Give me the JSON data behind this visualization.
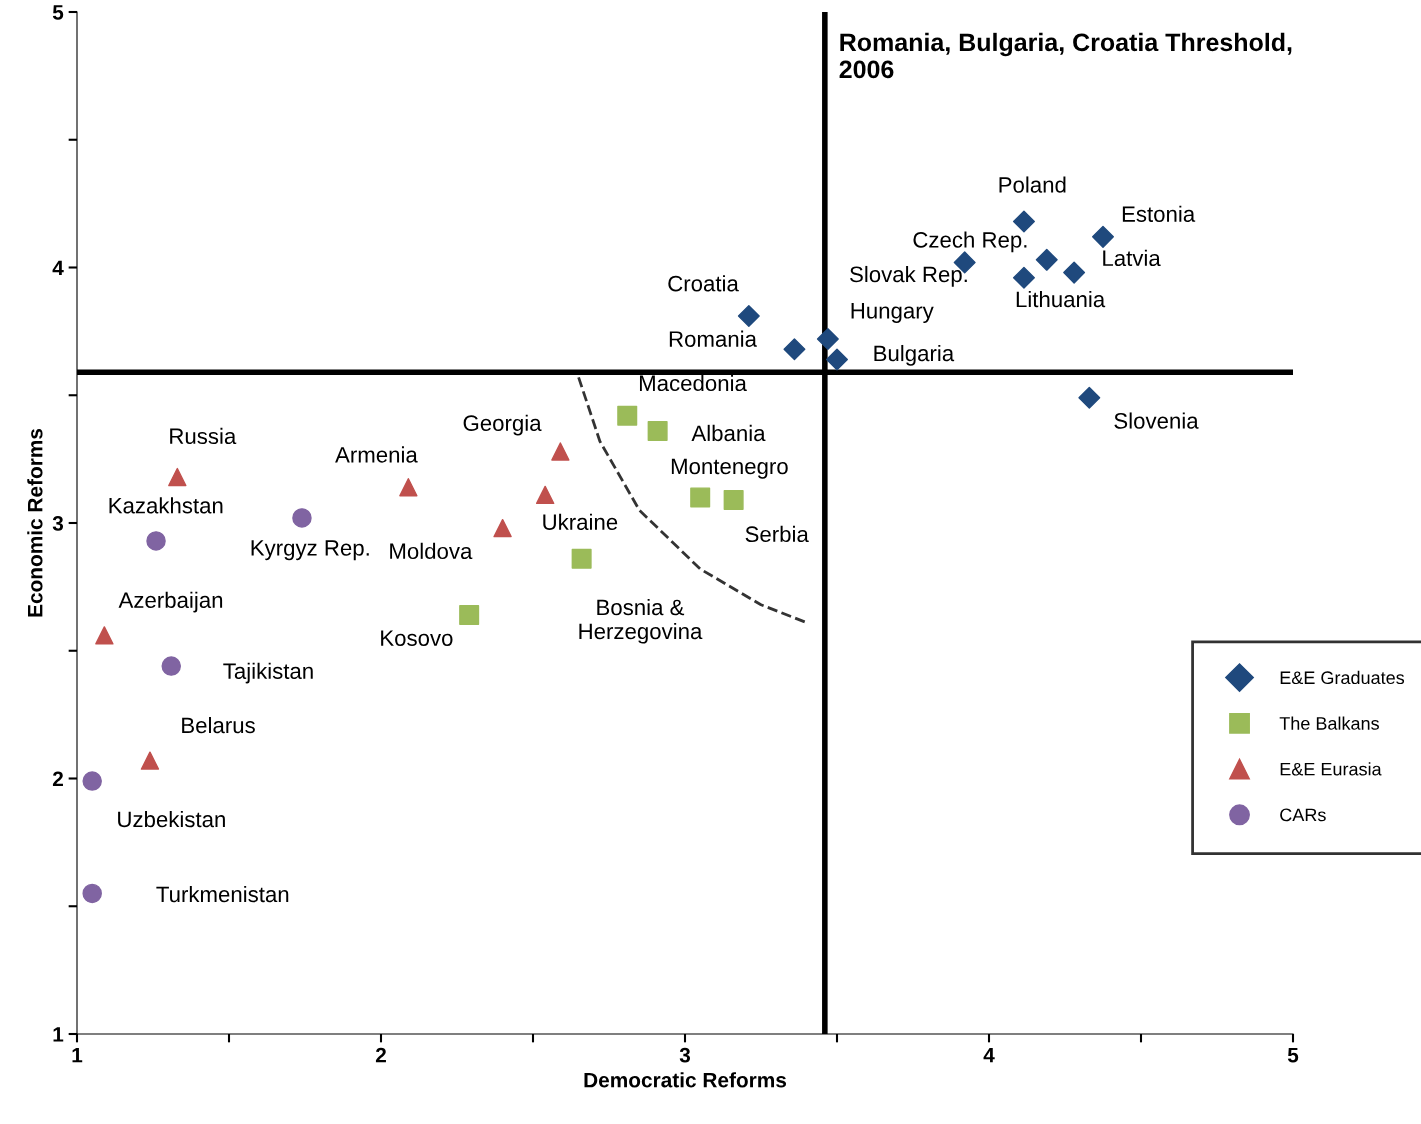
{
  "chart_data": {
    "type": "scatter",
    "xlabel": "Democratic Reforms",
    "ylabel": "Economic Reforms",
    "xlim": [
      1,
      5
    ],
    "ylim": [
      1,
      5
    ],
    "xticks": [
      1,
      {
        "value": 1.5,
        "label": null
      },
      2,
      {
        "value": 2.5,
        "label": null
      },
      3,
      {
        "value": 3.5,
        "label": null
      },
      4,
      {
        "value": 4.5,
        "label": null
      },
      5
    ],
    "yticks": [
      1,
      {
        "value": 1.5,
        "label": null
      },
      2,
      {
        "value": 2.5,
        "label": null
      },
      3,
      {
        "value": 3.5,
        "label": null
      },
      4,
      {
        "value": 4.5,
        "label": null
      },
      5
    ],
    "grid": false,
    "legend": "right",
    "series": [
      {
        "name": "E&E Graduates",
        "color": "#1f497d",
        "marker": "diamond",
        "x": [
          4.115,
          4.375,
          4.19,
          3.92,
          4.115,
          4.28,
          3.21,
          3.36,
          3.47,
          3.5,
          4.33
        ],
        "values": [
          4.18,
          4.12,
          4.03,
          4.02,
          3.96,
          3.98,
          3.81,
          3.68,
          3.72,
          3.64,
          3.49
        ]
      },
      {
        "name": "The Balkans",
        "color": "#9bbb59",
        "marker": "square",
        "x": [
          2.81,
          2.91,
          3.05,
          3.16,
          2.66,
          2.29
        ],
        "values": [
          3.42,
          3.36,
          3.1,
          3.09,
          2.86,
          2.64
        ]
      },
      {
        "name": "E&E Eurasia",
        "color": "#c0504d",
        "marker": "triangle",
        "x": [
          1.33,
          2.09,
          2.59,
          2.54,
          2.4,
          1.09,
          1.24
        ],
        "values": [
          3.18,
          3.14,
          3.28,
          3.11,
          2.98,
          2.56,
          2.07
        ]
      },
      {
        "name": "CARs",
        "color": "#8064a2",
        "marker": "circle",
        "x": [
          1.26,
          1.74,
          1.31,
          1.05,
          1.05
        ],
        "values": [
          2.93,
          3.02,
          2.44,
          1.99,
          1.55
        ]
      },
      {
        "type": "line",
        "color": "#333333",
        "line_style": "dashed",
        "marker": "none",
        "x": [
          2.65,
          2.72,
          2.85,
          3.05,
          3.25,
          3.4
        ],
        "values": [
          3.57,
          3.32,
          3.05,
          2.82,
          2.68,
          2.61
        ]
      }
    ],
    "ref_lines": [
      {
        "axis": "x",
        "value": 3.46,
        "label": "Romania, Bulgaria, Croatia Threshold,\n2006",
        "color": "#000000"
      },
      {
        "axis": "y",
        "value": 3.59,
        "color": "#000000"
      }
    ],
    "annotations": [
      {
        "text": "Poland",
        "x": 4.115,
        "y": 4.18
      },
      {
        "text": "Estonia",
        "x": 4.375,
        "y": 4.12
      },
      {
        "text": "Czech Rep.",
        "x": 4.19,
        "y": 4.03
      },
      {
        "text": "Slovak Rep.",
        "x": 3.92,
        "y": 4.02
      },
      {
        "text": "Lithuania",
        "x": 4.115,
        "y": 3.96
      },
      {
        "text": "Latvia",
        "x": 4.28,
        "y": 3.98
      },
      {
        "text": "Croatia",
        "x": 3.21,
        "y": 3.81
      },
      {
        "text": "Romania",
        "x": 3.36,
        "y": 3.68
      },
      {
        "text": "Hungary",
        "x": 3.47,
        "y": 3.72
      },
      {
        "text": "Bulgaria",
        "x": 3.5,
        "y": 3.64
      },
      {
        "text": "Slovenia",
        "x": 4.33,
        "y": 3.49
      },
      {
        "text": "Macedonia",
        "x": 2.81,
        "y": 3.42
      },
      {
        "text": "Albania",
        "x": 2.91,
        "y": 3.36
      },
      {
        "text": "Montenegro",
        "x": 3.05,
        "y": 3.1
      },
      {
        "text": "Serbia",
        "x": 3.16,
        "y": 3.09
      },
      {
        "text": "Bosnia &\nHerzegovina",
        "x": 2.66,
        "y": 2.86
      },
      {
        "text": "Kosovo",
        "x": 2.29,
        "y": 2.64
      },
      {
        "text": "Russia",
        "x": 1.33,
        "y": 3.18
      },
      {
        "text": "Armenia",
        "x": 2.09,
        "y": 3.14
      },
      {
        "text": "Georgia",
        "x": 2.59,
        "y": 3.28
      },
      {
        "text": "Ukraine",
        "x": 2.54,
        "y": 3.11
      },
      {
        "text": "Moldova",
        "x": 2.4,
        "y": 2.98
      },
      {
        "text": "Azerbaijan",
        "x": 1.09,
        "y": 2.56
      },
      {
        "text": "Belarus",
        "x": 1.24,
        "y": 2.07
      },
      {
        "text": "Kazakhstan",
        "x": 1.26,
        "y": 2.93
      },
      {
        "text": "Kyrgyz Rep.",
        "x": 1.74,
        "y": 3.02
      },
      {
        "text": "Tajikistan",
        "x": 1.31,
        "y": 2.44
      },
      {
        "text": "Uzbekistan",
        "x": 1.05,
        "y": 1.99
      },
      {
        "text": "Turkmenistan",
        "x": 1.05,
        "y": 1.55
      }
    ]
  }
}
